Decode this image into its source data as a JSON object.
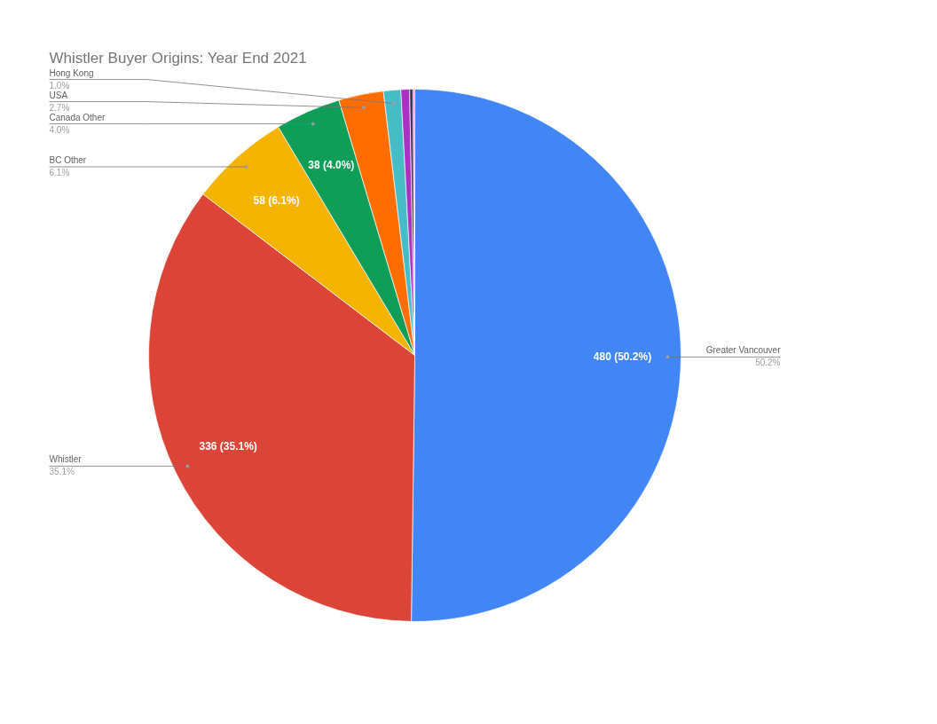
{
  "chart_data": {
    "type": "pie",
    "title": "Whistler Buyer Origins: Year End 2021",
    "categories": [
      "Greater Vancouver",
      "Whistler",
      "BC Other",
      "Canada Other",
      "USA",
      "Hong Kong",
      null,
      null,
      null
    ],
    "values": [
      480,
      336,
      58,
      38,
      26,
      10,
      5,
      2,
      1
    ],
    "colors": [
      "#4285f4",
      "#db4437",
      "#f4b400",
      "#0f9d58",
      "#ff6d01",
      "#46bdc6",
      "#ab30c4",
      "#3c3c50",
      "#e67cc8"
    ],
    "value_labels": [
      "480 (50.2%)",
      "336 (35.1%)",
      "58 (6.1%)",
      "38 (4.0%)",
      null,
      null,
      null,
      null,
      null
    ],
    "annotations": [
      {
        "text": "50.2%",
        "x": "Greater Vancouver"
      },
      {
        "text": "35.1%",
        "x": "Whistler"
      },
      {
        "text": "6.1%",
        "x": "BC Other"
      },
      {
        "text": "4.0%",
        "x": "Canada Other"
      },
      {
        "text": "2.7%",
        "x": "USA"
      },
      {
        "text": "1.0%",
        "x": "Hong Kong"
      }
    ]
  }
}
